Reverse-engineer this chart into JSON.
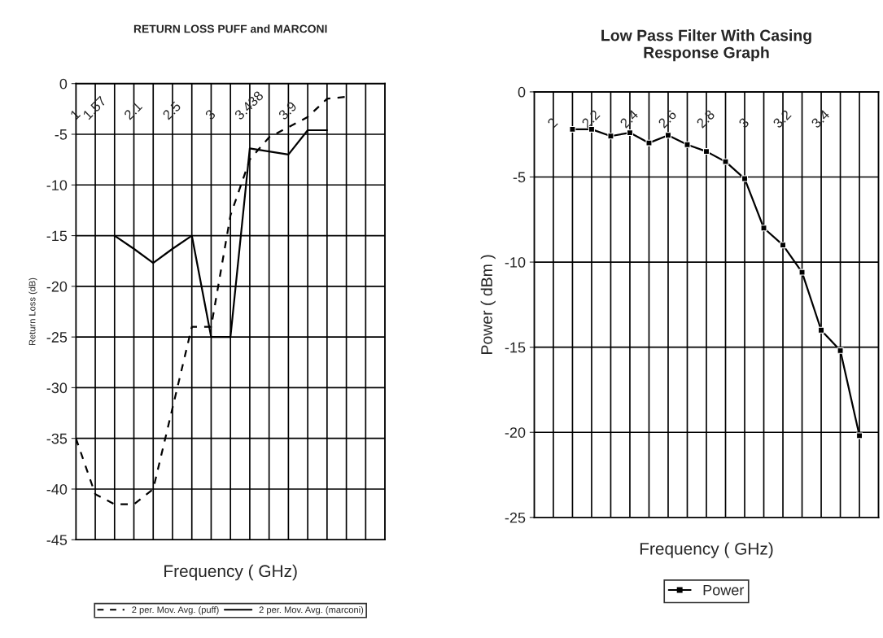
{
  "chart_data": [
    {
      "type": "line",
      "title": "RETURN LOSS PUFF and MARCONI",
      "xlabel": "Frequency ( GHz)",
      "ylabel": "Return Loss (dB)",
      "categories": [
        "1",
        "1.57",
        null,
        "2.1",
        null,
        "2.5",
        null,
        "3",
        null,
        "3.438",
        null,
        "3.9",
        null,
        null,
        null,
        null,
        null
      ],
      "series": [
        {
          "name": "2 per. Mov. Avg. (puff)",
          "color": "#000000",
          "line_style": "dashed",
          "values": [
            -35,
            -40.5,
            -41.5,
            -41.5,
            -40,
            -32,
            -24,
            -24,
            -13,
            -7.5,
            -5.3,
            -4.3,
            -3.3,
            -1.5,
            -1.3,
            null,
            null
          ]
        },
        {
          "name": "2 per. Mov. Avg. (marconi)",
          "color": "#000000",
          "line_style": "solid",
          "values": [
            null,
            null,
            -15,
            -16.3,
            -17.7,
            -16.3,
            -15,
            -25,
            -25,
            -6.4,
            -6.7,
            -7,
            -4.6,
            -4.6,
            null,
            null,
            null
          ]
        }
      ],
      "ylim": [
        -45,
        0
      ],
      "yticks": [
        0,
        -5,
        -10,
        -15,
        -20,
        -25,
        -30,
        -35,
        -40,
        -45
      ],
      "grid": true,
      "legend": "bottom",
      "marker": "none"
    },
    {
      "type": "line",
      "title": "Low Pass Filter With Casing\nResponse Graph",
      "xlabel": "Frequency ( GHz)",
      "ylabel": "Power ( dBm )",
      "categories": [
        null,
        "2",
        null,
        "2.2",
        null,
        "2.4",
        null,
        "2.6",
        null,
        "2.8",
        null,
        "3",
        null,
        "3.2",
        null,
        "3.4",
        null,
        null,
        null
      ],
      "series": [
        {
          "name": "Power",
          "color": "#000000",
          "line_style": "solid",
          "values": [
            null,
            null,
            -2.2,
            -2.2,
            -2.6,
            -2.4,
            -3.0,
            -2.55,
            -3.1,
            -3.5,
            -4.1,
            -5.1,
            -8.0,
            -9.0,
            -10.6,
            -14.0,
            -15.2,
            -20.2,
            null
          ]
        }
      ],
      "ylim": [
        -25,
        0
      ],
      "yticks": [
        0,
        -5,
        -10,
        -15,
        -20,
        -25
      ],
      "grid": true,
      "legend": "bottom",
      "marker": "square"
    }
  ]
}
